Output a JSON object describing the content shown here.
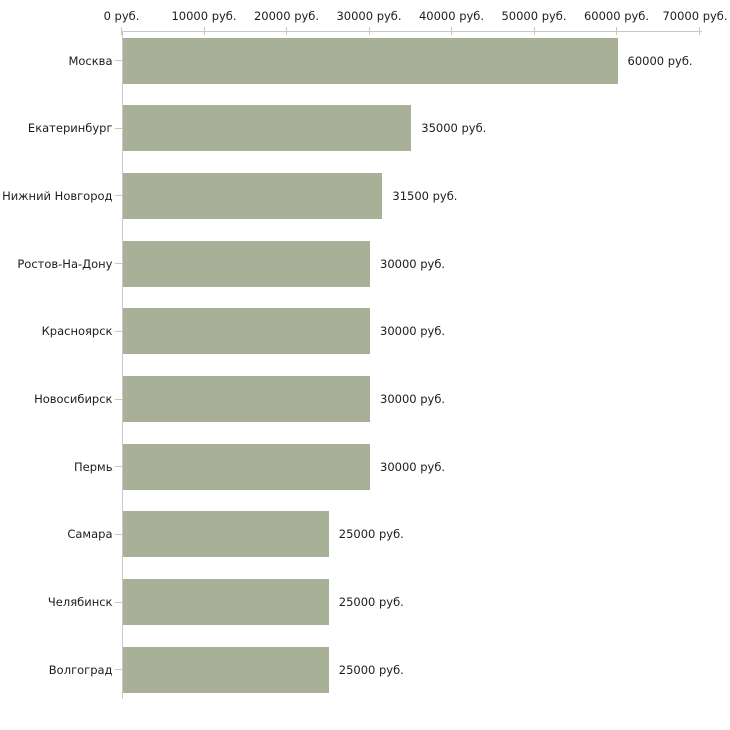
{
  "chart_data": {
    "type": "bar",
    "orientation": "horizontal",
    "title": "",
    "xlabel": "",
    "ylabel": "",
    "xlim": [
      0,
      70000
    ],
    "grid": false,
    "legend": null,
    "x_axis_position": "top",
    "x_ticks": [
      0,
      10000,
      20000,
      30000,
      40000,
      50000,
      60000,
      70000
    ],
    "x_tick_labels": [
      "0 руб.",
      "10000 руб.",
      "20000 руб.",
      "30000 руб.",
      "40000 руб.",
      "50000 руб.",
      "60000 руб.",
      "70000 руб."
    ],
    "categories": [
      "Москва",
      "Екатеринбург",
      "Нижний Новгород",
      "Ростов-На-Дону",
      "Красноярск",
      "Новосибирск",
      "Пермь",
      "Самара",
      "Челябинск",
      "Волгоград"
    ],
    "values": [
      60000,
      35000,
      31500,
      30000,
      30000,
      30000,
      30000,
      25000,
      25000,
      25000
    ],
    "value_labels": [
      "60000 руб.",
      "35000 руб.",
      "31500 руб.",
      "30000 руб.",
      "30000 руб.",
      "30000 руб.",
      "30000 руб.",
      "25000 руб.",
      "25000 руб.",
      "25000 руб."
    ],
    "colors": {
      "bar": "#a9b098",
      "axis_line": "#c8c8c8",
      "tick_mark": "#cecc9f",
      "text": "#1c1c1c",
      "background": "#ffffff"
    }
  }
}
